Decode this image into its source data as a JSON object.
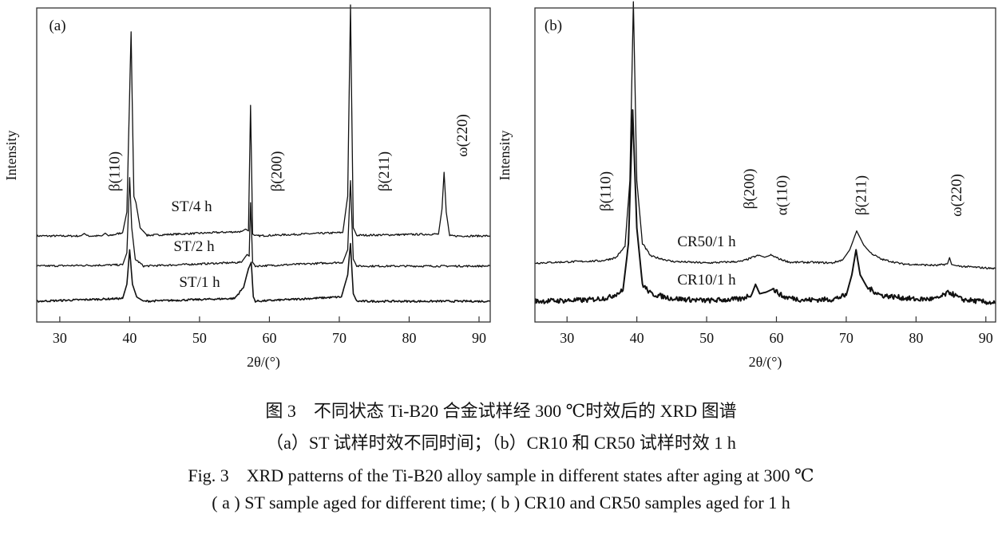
{
  "chart_data": [
    {
      "type": "line",
      "panel_label": "(a)",
      "xlabel": "2θ/(°)",
      "ylabel": "Intensity",
      "xlim": [
        26.7,
        91.6
      ],
      "ylim": [
        0,
        100
      ],
      "xticks": [
        30,
        40,
        50,
        60,
        70,
        80,
        90
      ],
      "grid": false,
      "series": [
        {
          "name": "ST/4 h",
          "x": [
            26.7,
            33,
            33.5,
            34,
            36,
            36.5,
            37,
            39,
            39.6,
            40.2,
            40.6,
            40.9,
            41.5,
            42.5,
            56,
            56.6,
            57.0,
            57.3,
            57.6,
            58,
            70.5,
            71.2,
            71.6,
            72.0,
            72.5,
            84.2,
            84.7,
            85.0,
            85.3,
            85.8,
            91.6
          ],
          "y": [
            27.4,
            27.4,
            28.2,
            27.4,
            27.4,
            28.3,
            27.4,
            28.5,
            35,
            92.4,
            40,
            38,
            30,
            27.6,
            28.8,
            29.6,
            29,
            69,
            28,
            27.4,
            28.5,
            40,
            101,
            30,
            27.6,
            28,
            36,
            47.7,
            35,
            27.4,
            27.4
          ]
        },
        {
          "name": "ST/2 h",
          "x": [
            26.7,
            39,
            39.6,
            40.0,
            40.3,
            40.8,
            42,
            56,
            56.8,
            57.1,
            57.3,
            57.6,
            58,
            70.5,
            71.2,
            71.6,
            72,
            72.5,
            91.6
          ],
          "y": [
            17.8,
            18.2,
            22,
            46,
            30,
            20,
            17.8,
            19,
            21.5,
            21,
            38,
            19,
            17.8,
            19,
            23,
            45,
            20,
            17.8,
            17.8
          ]
        },
        {
          "name": "ST/1 h",
          "x": [
            26.7,
            39,
            39.6,
            40.0,
            40.4,
            41,
            42,
            55,
            56.3,
            57.0,
            57.4,
            57.7,
            58,
            70.3,
            71.2,
            71.6,
            72,
            72.5,
            91.6
          ],
          "y": [
            6.6,
            7.5,
            12,
            23,
            12,
            8,
            6.6,
            7.5,
            11,
            17,
            19,
            8,
            6.6,
            8,
            15,
            25,
            9,
            6.6,
            6.6
          ]
        }
      ],
      "annotations": [
        {
          "text": "β(110)",
          "x": 38.0
        },
        {
          "text": "β(200)",
          "x": 61.2
        },
        {
          "text": "β(211)",
          "x": 76.6
        },
        {
          "text": "ω(220)",
          "x": 87.8
        }
      ]
    },
    {
      "type": "line",
      "panel_label": "(b)",
      "xlabel": "2θ/(°)",
      "ylabel": "Intensity",
      "xlim": [
        25.4,
        91.4
      ],
      "ylim": [
        0,
        100
      ],
      "xticks": [
        30,
        40,
        50,
        60,
        70,
        80,
        90
      ],
      "grid": false,
      "series": [
        {
          "name": "CR50/1 h",
          "x": [
            25.4,
            35,
            37,
            38.3,
            39.0,
            39.5,
            40.0,
            40.8,
            42,
            45,
            50,
            55,
            57.5,
            58.3,
            59.2,
            60.5,
            62,
            65,
            68,
            69.5,
            70.5,
            71.5,
            72.5,
            73.5,
            75,
            78,
            83,
            84.5,
            84.8,
            85.1,
            86,
            91.4
          ],
          "y": [
            18.8,
            19.5,
            20.5,
            24,
            45,
            102,
            45,
            25,
            21,
            19.3,
            18.8,
            19.3,
            21.3,
            20.6,
            21.3,
            20,
            19,
            19,
            18.8,
            19.8,
            23,
            29,
            24.5,
            22,
            20,
            18.5,
            18,
            18.5,
            20.5,
            18.3,
            17.8,
            17
          ]
        },
        {
          "name": "CR10/1 h",
          "x": [
            25.4,
            33,
            36,
            38,
            38.8,
            39.4,
            40.0,
            40.8,
            42,
            45,
            50,
            55,
            56.5,
            57.0,
            57.6,
            58.5,
            59.5,
            61,
            64,
            68,
            70,
            70.8,
            71.4,
            72,
            73,
            75,
            80,
            83,
            84.8,
            86.5,
            91.4
          ],
          "y": [
            6.6,
            7,
            7.8,
            10,
            25,
            67.5,
            30,
            12,
            9,
            7.5,
            6.8,
            7.3,
            9,
            12,
            9,
            9.5,
            10.5,
            8,
            7,
            7.2,
            8.5,
            15,
            23,
            15,
            11,
            8.5,
            7.2,
            7.4,
            9.5,
            7.2,
            6
          ]
        }
      ],
      "annotations": [
        {
          "text": "β(110)",
          "x": 35.7
        },
        {
          "text": "β(200)",
          "x": 56.3
        },
        {
          "text": "α(110)",
          "x": 61.0
        },
        {
          "text": "β(211)",
          "x": 72.3
        },
        {
          "text": "ω(220)",
          "x": 86.0
        }
      ]
    }
  ],
  "caption": {
    "cn_title": "图 3　不同状态 Ti-B20 合金试样经 300 ℃时效后的 XRD 图谱",
    "cn_sub": "（a）ST 试样时效不同时间；（b）CR10 和 CR50 试样时效 1 h",
    "en_title": "Fig. 3　XRD patterns of the Ti-B20 alloy sample in different states after aging at 300 ℃",
    "en_sub": "( a ) ST sample aged for different time; ( b ) CR10 and CR50 samples aged for 1 h"
  }
}
